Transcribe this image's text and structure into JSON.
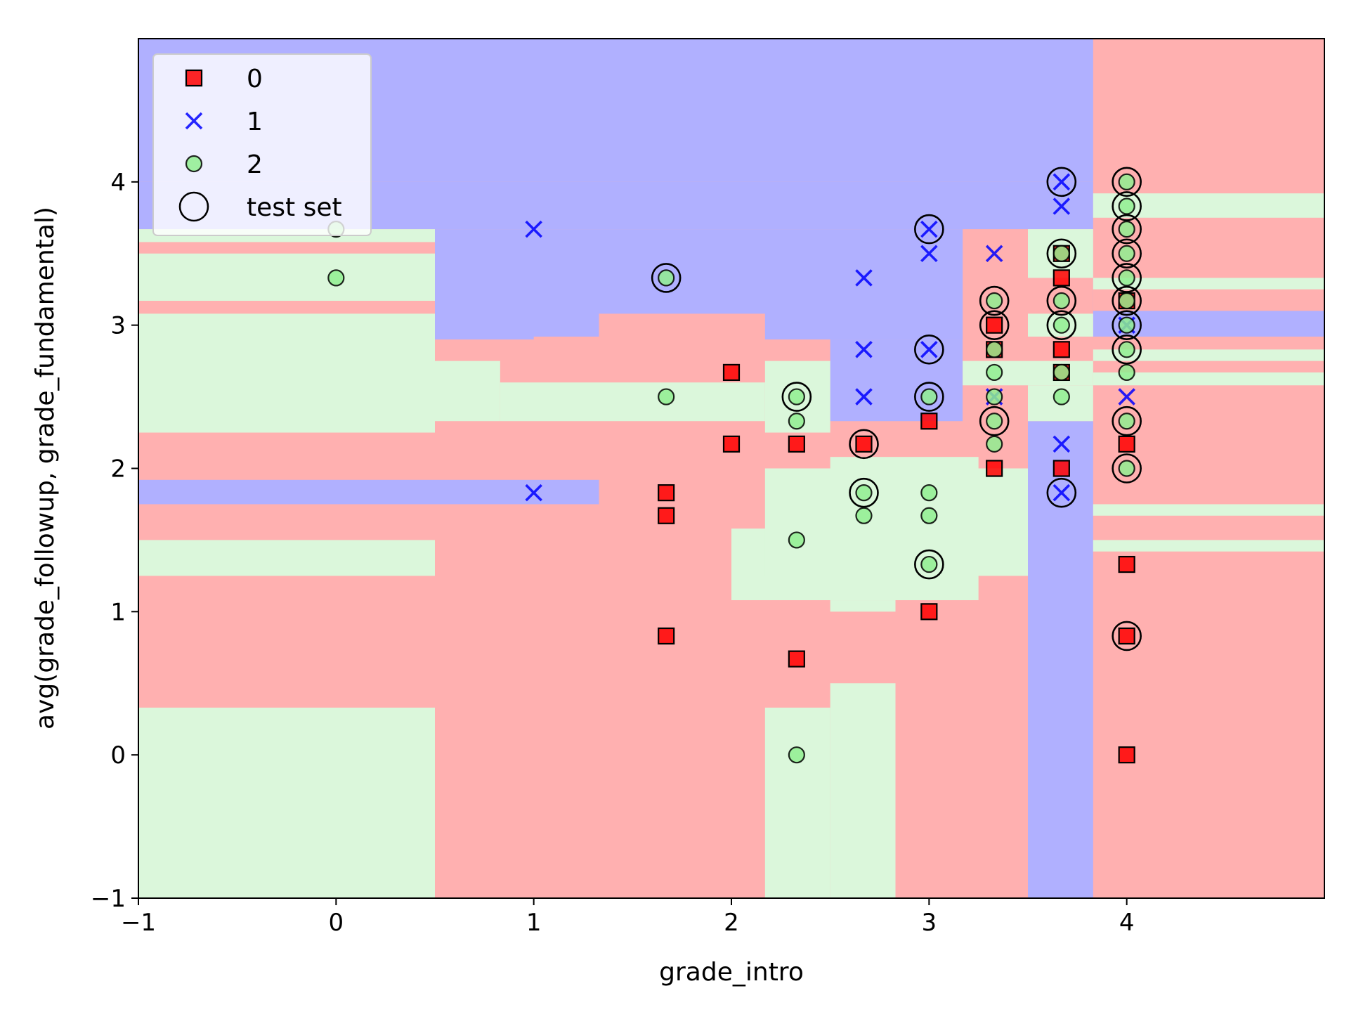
{
  "chart_data": {
    "type": "scatter",
    "xlabel": "grade_intro",
    "ylabel": "avg(grade_followup, grade_fundamental)",
    "xlim": [
      -1,
      5
    ],
    "ylim": [
      -1,
      5
    ],
    "xticks": [
      -1,
      0,
      1,
      2,
      3,
      4
    ],
    "yticks": [
      -1,
      0,
      1,
      2,
      3,
      4
    ],
    "xtick_labels": [
      "−1",
      "0",
      "1",
      "2",
      "3",
      "4"
    ],
    "ytick_labels": [
      "−1",
      "0",
      "1",
      "2",
      "3",
      "4"
    ],
    "grid": false,
    "legend_position": "top-left",
    "colors": {
      "class0": "#ff0000",
      "class1": "#0000ff",
      "class2": "#90ee90",
      "region0": "#ffb0b0",
      "region1": "#b0b0ff",
      "region2": "#dbf7db"
    },
    "legend": [
      {
        "label": "0",
        "marker": "square",
        "color": "#ff0000"
      },
      {
        "label": "1",
        "marker": "x",
        "color": "#0000ff"
      },
      {
        "label": "2",
        "marker": "circle",
        "color": "#90ee90"
      },
      {
        "label": "test set",
        "marker": "open-circle",
        "color": "#000000"
      }
    ],
    "decision_regions": {
      "background_class": 0,
      "rects": [
        {
          "cls": 1,
          "x0": -1,
          "x1": 3.83,
          "y0": 4.0,
          "y1": 5
        },
        {
          "cls": 1,
          "x0": -1,
          "x1": 3.83,
          "y0": 3.67,
          "y1": 4.0
        },
        {
          "cls": 1,
          "x0": 0.5,
          "x1": 3.83,
          "y0": 2.9,
          "y1": 3.67
        },
        {
          "cls": 1,
          "x0": 2.5,
          "x1": 3.17,
          "y0": 2.33,
          "y1": 2.9
        },
        {
          "cls": 0,
          "x0": 3.17,
          "x1": 3.83,
          "y0": 2.33,
          "y1": 3.67
        },
        {
          "cls": 0,
          "x0": 1.33,
          "x1": 2.17,
          "y0": 2.75,
          "y1": 3.08
        },
        {
          "cls": 0,
          "x0": 1.0,
          "x1": 1.33,
          "y0": 2.83,
          "y1": 2.92
        },
        {
          "cls": 0,
          "x0": 0.83,
          "x1": 2.17,
          "y0": 2.6,
          "y1": 2.75
        },
        {
          "cls": 1,
          "x0": -1,
          "x1": 1.33,
          "y0": 1.75,
          "y1": 1.92
        },
        {
          "cls": 1,
          "x0": 3.5,
          "x1": 3.83,
          "y0": -1,
          "y1": 2.33
        },
        {
          "cls": 1,
          "x0": 3.83,
          "x1": 5,
          "y0": 2.92,
          "y1": 3.1
        },
        {
          "cls": 2,
          "x0": -1,
          "x1": 0.5,
          "y0": 3.58,
          "y1": 3.67
        },
        {
          "cls": 2,
          "x0": -1,
          "x1": 0.5,
          "y0": 3.17,
          "y1": 3.5
        },
        {
          "cls": 2,
          "x0": -1,
          "x1": 0.5,
          "y0": 2.25,
          "y1": 3.08
        },
        {
          "cls": 2,
          "x0": 0.5,
          "x1": 0.83,
          "y0": 2.33,
          "y1": 2.75
        },
        {
          "cls": 2,
          "x0": 0.83,
          "x1": 2.17,
          "y0": 2.33,
          "y1": 2.6
        },
        {
          "cls": 2,
          "x0": 2.17,
          "x1": 2.5,
          "y0": 2.25,
          "y1": 2.75
        },
        {
          "cls": 2,
          "x0": -1,
          "x1": 0.5,
          "y0": 1.25,
          "y1": 1.5
        },
        {
          "cls": 2,
          "x0": -1,
          "x1": 0.5,
          "y0": -1,
          "y1": 0.33
        },
        {
          "cls": 2,
          "x0": 2.17,
          "x1": 2.5,
          "y0": -1,
          "y1": 0.33
        },
        {
          "cls": 2,
          "x0": 2.5,
          "x1": 2.83,
          "y0": -1,
          "y1": 0.5
        },
        {
          "cls": 2,
          "x0": 2.0,
          "x1": 3.25,
          "y0": 1.08,
          "y1": 1.58
        },
        {
          "cls": 2,
          "x0": 2.5,
          "x1": 2.83,
          "y0": 1.0,
          "y1": 1.08
        },
        {
          "cls": 2,
          "x0": 2.17,
          "x1": 3.5,
          "y0": 1.25,
          "y1": 2.0
        },
        {
          "cls": 2,
          "x0": 2.5,
          "x1": 3.25,
          "y0": 2.0,
          "y1": 2.08
        },
        {
          "cls": 2,
          "x0": 3.17,
          "x1": 3.83,
          "y0": 2.58,
          "y1": 2.75
        },
        {
          "cls": 2,
          "x0": 3.5,
          "x1": 3.83,
          "y0": 2.33,
          "y1": 2.58
        },
        {
          "cls": 2,
          "x0": 3.5,
          "x1": 3.83,
          "y0": 3.33,
          "y1": 3.67
        },
        {
          "cls": 2,
          "x0": 3.5,
          "x1": 3.83,
          "y0": 2.92,
          "y1": 3.08
        },
        {
          "cls": 2,
          "x0": 3.83,
          "x1": 5,
          "y0": 3.75,
          "y1": 3.92
        },
        {
          "cls": 2,
          "x0": 3.83,
          "x1": 5,
          "y0": 3.25,
          "y1": 3.33
        },
        {
          "cls": 2,
          "x0": 3.83,
          "x1": 5,
          "y0": 2.75,
          "y1": 2.83
        },
        {
          "cls": 2,
          "x0": 3.83,
          "x1": 5,
          "y0": 2.58,
          "y1": 2.67
        },
        {
          "cls": 2,
          "x0": 3.83,
          "x1": 5,
          "y0": 1.67,
          "y1": 1.75
        },
        {
          "cls": 2,
          "x0": 3.83,
          "x1": 5,
          "y0": 1.42,
          "y1": 1.5
        }
      ]
    },
    "series": [
      {
        "name": "0",
        "marker": "square",
        "points": [
          [
            2,
            2.67
          ],
          [
            2,
            2.17
          ],
          [
            1.67,
            1.83
          ],
          [
            1.67,
            1.67
          ],
          [
            1.67,
            0.83
          ],
          [
            2.33,
            2.17
          ],
          [
            2.33,
            0.67
          ],
          [
            2.67,
            2.17
          ],
          [
            3,
            2.33
          ],
          [
            3,
            1.0
          ],
          [
            3.33,
            3.0
          ],
          [
            3.33,
            2.83
          ],
          [
            3.33,
            2.0
          ],
          [
            3.67,
            3.5
          ],
          [
            3.67,
            3.33
          ],
          [
            3.67,
            2.83
          ],
          [
            3.67,
            2.67
          ],
          [
            3.67,
            2.0
          ],
          [
            4,
            3.17
          ],
          [
            4,
            2.17
          ],
          [
            4,
            1.33
          ],
          [
            4,
            0.83
          ],
          [
            4,
            0.0
          ]
        ]
      },
      {
        "name": "1",
        "marker": "x",
        "points": [
          [
            1,
            3.67
          ],
          [
            1,
            1.83
          ],
          [
            2.67,
            3.33
          ],
          [
            2.67,
            2.83
          ],
          [
            2.67,
            2.5
          ],
          [
            3,
            3.67
          ],
          [
            3,
            3.5
          ],
          [
            3,
            2.83
          ],
          [
            3.33,
            3.5
          ],
          [
            3.33,
            2.5
          ],
          [
            3.67,
            4.0
          ],
          [
            3.67,
            3.83
          ],
          [
            3.67,
            2.17
          ],
          [
            3.67,
            1.83
          ],
          [
            4,
            3.0
          ],
          [
            4,
            2.5
          ]
        ]
      },
      {
        "name": "2",
        "marker": "circle",
        "points": [
          [
            0,
            3.67
          ],
          [
            0,
            3.33
          ],
          [
            1.67,
            3.33
          ],
          [
            1.67,
            2.5
          ],
          [
            2.33,
            2.5
          ],
          [
            2.33,
            2.33
          ],
          [
            2.33,
            1.5
          ],
          [
            2.33,
            0.0
          ],
          [
            2.67,
            1.83
          ],
          [
            2.67,
            1.67
          ],
          [
            3,
            2.5
          ],
          [
            3,
            1.83
          ],
          [
            3,
            1.67
          ],
          [
            3,
            1.33
          ],
          [
            3.33,
            3.17
          ],
          [
            3.33,
            2.83
          ],
          [
            3.33,
            2.67
          ],
          [
            3.33,
            2.5
          ],
          [
            3.33,
            2.33
          ],
          [
            3.33,
            2.17
          ],
          [
            3.67,
            3.5
          ],
          [
            3.67,
            3.17
          ],
          [
            3.67,
            3.0
          ],
          [
            3.67,
            2.67
          ],
          [
            3.67,
            2.5
          ],
          [
            4,
            4.0
          ],
          [
            4,
            3.83
          ],
          [
            4,
            3.67
          ],
          [
            4,
            3.5
          ],
          [
            4,
            3.33
          ],
          [
            4,
            3.17
          ],
          [
            4,
            3.0
          ],
          [
            4,
            2.83
          ],
          [
            4,
            2.67
          ],
          [
            4,
            2.33
          ],
          [
            4,
            2.0
          ]
        ]
      }
    ],
    "test_set": [
      [
        1.67,
        3.33
      ],
      [
        2.33,
        2.5
      ],
      [
        2.67,
        2.17
      ],
      [
        2.67,
        1.83
      ],
      [
        3,
        3.67
      ],
      [
        3,
        2.83
      ],
      [
        3,
        2.5
      ],
      [
        3,
        1.33
      ],
      [
        3.33,
        3.17
      ],
      [
        3.33,
        3.0
      ],
      [
        3.33,
        2.33
      ],
      [
        3.67,
        4.0
      ],
      [
        3.67,
        3.5
      ],
      [
        3.67,
        3.17
      ],
      [
        3.67,
        3.0
      ],
      [
        3.67,
        1.83
      ],
      [
        4,
        4.0
      ],
      [
        4,
        3.83
      ],
      [
        4,
        3.67
      ],
      [
        4,
        3.5
      ],
      [
        4,
        3.33
      ],
      [
        4,
        3.17
      ],
      [
        4,
        3.0
      ],
      [
        4,
        2.83
      ],
      [
        4,
        2.33
      ],
      [
        4,
        2.0
      ],
      [
        4,
        0.83
      ]
    ]
  }
}
